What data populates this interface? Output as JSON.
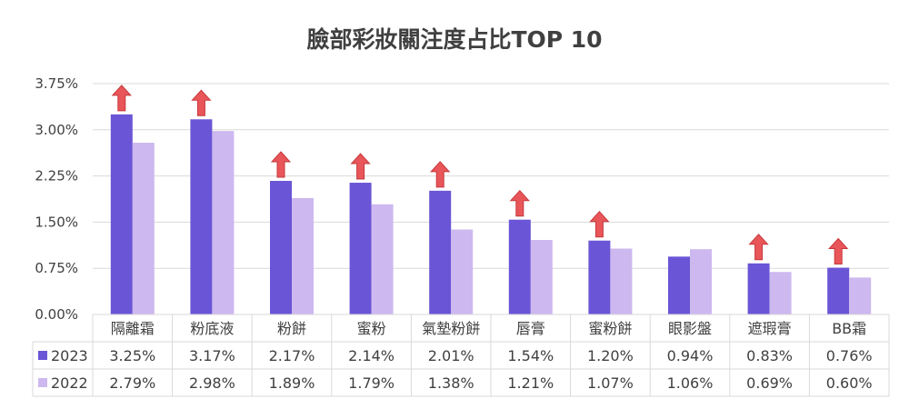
{
  "chart_data": {
    "type": "bar",
    "title": "臉部彩妝關注度占比TOP 10",
    "categories": [
      "隔離霜",
      "粉底液",
      "粉餅",
      "蜜粉",
      "氣墊粉餅",
      "唇膏",
      "蜜粉餅",
      "眼影盤",
      "遮瑕膏",
      "BB霜"
    ],
    "ylim": [
      0,
      3.75
    ],
    "yticks": [
      "0.00%",
      "0.75%",
      "1.50%",
      "2.25%",
      "3.00%",
      "3.75%"
    ],
    "series": [
      {
        "name": "2023",
        "color": "#6a55d6",
        "values": [
          3.25,
          3.17,
          2.17,
          2.14,
          2.01,
          1.54,
          1.2,
          0.94,
          0.83,
          0.76
        ],
        "labels": [
          "3.25%",
          "3.17%",
          "2.17%",
          "2.14%",
          "2.01%",
          "1.54%",
          "1.20%",
          "0.94%",
          "0.83%",
          "0.76%"
        ]
      },
      {
        "name": "2022",
        "color": "#cdb8ef",
        "values": [
          2.79,
          2.98,
          1.89,
          1.79,
          1.38,
          1.21,
          1.07,
          1.06,
          0.69,
          0.6
        ],
        "labels": [
          "2.79%",
          "2.98%",
          "1.89%",
          "1.79%",
          "1.38%",
          "1.21%",
          "1.07%",
          "1.06%",
          "0.69%",
          "0.60%"
        ]
      }
    ],
    "increase_arrows": [
      true,
      true,
      true,
      true,
      true,
      true,
      true,
      false,
      true,
      true
    ],
    "arrow_color": "#e8565a",
    "grid": true,
    "legend": "data-table"
  }
}
